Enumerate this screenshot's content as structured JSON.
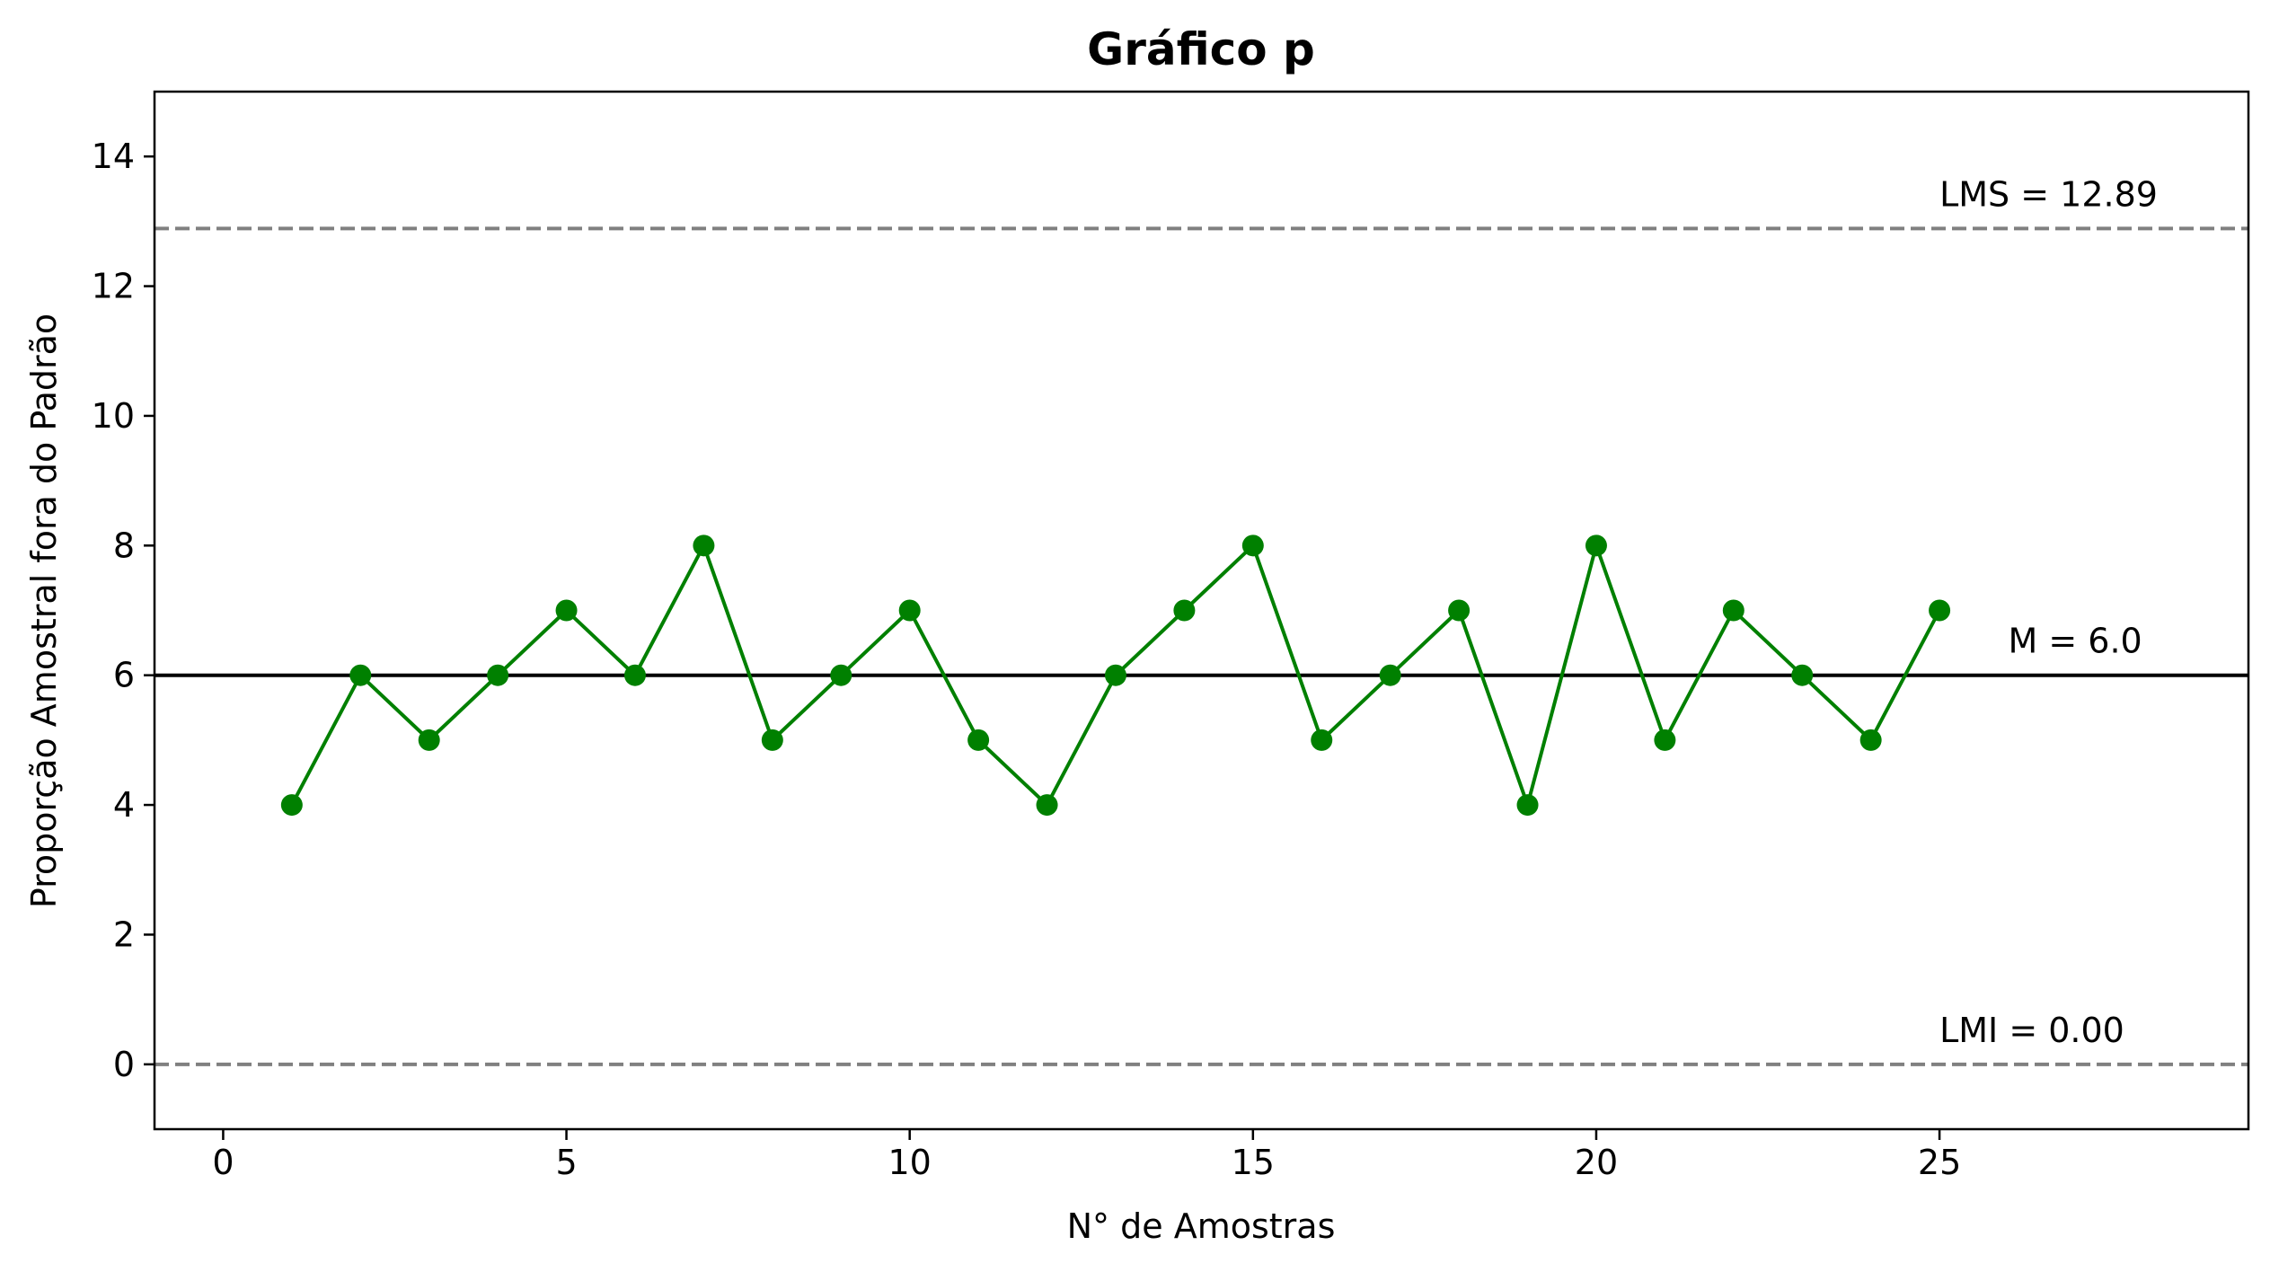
{
  "chart_data": {
    "type": "line",
    "title": "Gráfico p",
    "xlabel": "N° de Amostras",
    "ylabel": "Proporção Amostral fora do Padrão",
    "xlim": [
      -1,
      29.5
    ],
    "ylim": [
      -1,
      15
    ],
    "xticks": [
      0,
      5,
      10,
      15,
      20,
      25
    ],
    "yticks": [
      0,
      2,
      4,
      6,
      8,
      10,
      12,
      14
    ],
    "grid": false,
    "series": [
      {
        "x": [
          1,
          2,
          3,
          4,
          5,
          6,
          7,
          8,
          9,
          10,
          11,
          12,
          13,
          14,
          15,
          16,
          17,
          18,
          19,
          20,
          21,
          22,
          23,
          24,
          25
        ],
        "values": [
          4,
          6,
          5,
          6,
          7,
          6,
          8,
          5,
          6,
          7,
          5,
          4,
          6,
          7,
          8,
          5,
          6,
          7,
          4,
          8,
          5,
          7,
          6,
          5,
          7
        ],
        "color": "#008000"
      }
    ],
    "control_lines": [
      {
        "name": "LMS",
        "label": "LMS = 12.89",
        "value": 12.89,
        "style": "dashed",
        "color": "#808080"
      },
      {
        "name": "M",
        "label": "M = 6.0",
        "value": 6.0,
        "style": "solid",
        "color": "#000000"
      },
      {
        "name": "LMI",
        "label": "LMI = 0.00",
        "value": 0.0,
        "style": "dashed",
        "color": "#808080"
      }
    ]
  }
}
